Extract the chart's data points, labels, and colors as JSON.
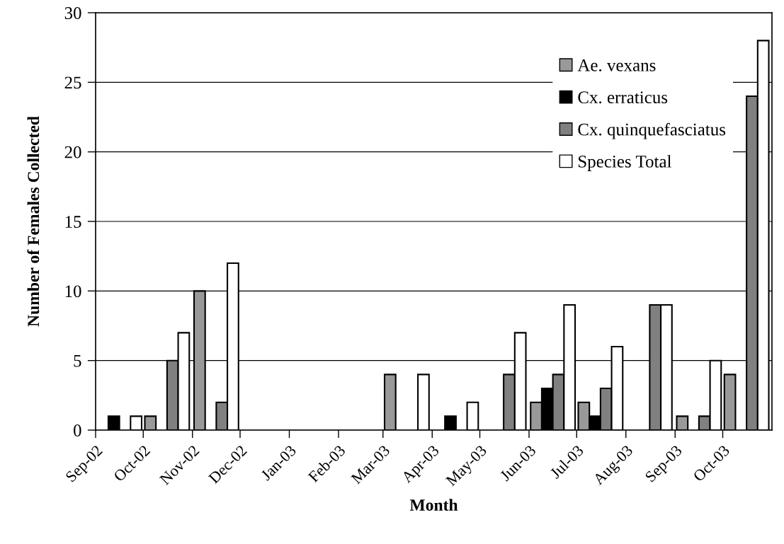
{
  "chart_data": {
    "type": "bar",
    "xlabel": "Month",
    "ylabel": "Number of Females Collected",
    "x": [
      "2002-09-16",
      "2002-10-16",
      "2002-11-16",
      "2002-12-16",
      "2003-01-16",
      "2003-02-15",
      "2003-03-16",
      "2003-04-16",
      "2003-05-16",
      "2003-06-16",
      "2003-07-16",
      "2003-08-16",
      "2003-09-16",
      "2003-10-16"
    ],
    "series": [
      {
        "name": "Ae. vexans",
        "color": "#999999",
        "values": [
          null,
          1,
          10,
          null,
          null,
          null,
          4,
          null,
          null,
          2,
          2,
          null,
          1,
          4
        ]
      },
      {
        "name": "Cx. erraticus",
        "color": "#000000",
        "values": [
          1,
          null,
          null,
          null,
          null,
          null,
          null,
          1,
          null,
          3,
          1,
          null,
          null,
          null
        ]
      },
      {
        "name": "Cx. quinquefasciatus",
        "color": "#808080",
        "values": [
          null,
          5,
          2,
          null,
          null,
          null,
          null,
          null,
          4,
          4,
          3,
          9,
          1,
          24
        ]
      },
      {
        "name": "Species Total",
        "color": "#ffffff",
        "values": [
          1,
          7,
          12,
          null,
          null,
          null,
          4,
          2,
          7,
          9,
          6,
          9,
          5,
          28
        ]
      }
    ],
    "xlim": [
      "2002-09-01",
      "2003-11-01"
    ],
    "xticks": [
      {
        "value": "2002-09-01",
        "label": "Sep-02"
      },
      {
        "value": "2002-10-01",
        "label": "Oct-02"
      },
      {
        "value": "2002-11-01",
        "label": "Nov-02"
      },
      {
        "value": "2002-12-01",
        "label": "Dec-02"
      },
      {
        "value": "2003-01-01",
        "label": "Jan-03"
      },
      {
        "value": "2003-02-01",
        "label": "Feb-03"
      },
      {
        "value": "2003-03-01",
        "label": "Mar-03"
      },
      {
        "value": "2003-04-01",
        "label": "Apr-03"
      },
      {
        "value": "2003-05-01",
        "label": "May-03"
      },
      {
        "value": "2003-06-01",
        "label": "Jun-03"
      },
      {
        "value": "2003-07-01",
        "label": "Jul-03"
      },
      {
        "value": "2003-08-01",
        "label": "Aug-03"
      },
      {
        "value": "2003-09-01",
        "label": "Sep-03"
      },
      {
        "value": "2003-10-01",
        "label": "Oct-03"
      }
    ],
    "ylim": [
      0,
      30
    ],
    "yticks": [
      0,
      5,
      10,
      15,
      20,
      25,
      30
    ],
    "grid": "y",
    "legend": "top right"
  }
}
